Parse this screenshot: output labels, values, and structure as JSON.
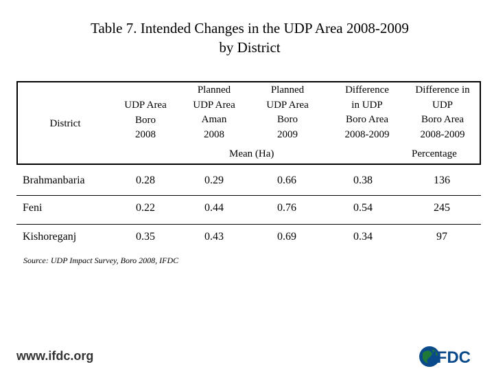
{
  "title": {
    "line1": "Table 7. Intended Changes  in the UDP Area 2008-2009",
    "line2": "by District"
  },
  "table": {
    "headers": {
      "district": "District",
      "col1": [
        "UDP Area",
        "Boro",
        "2008"
      ],
      "col2": [
        "Planned",
        "UDP Area",
        "Aman",
        "2008"
      ],
      "col3": [
        "Planned",
        "UDP Area",
        "Boro",
        "2009"
      ],
      "col4": [
        "Difference",
        "in UDP",
        "Boro Area",
        "2008-2009"
      ],
      "col5": [
        "Difference in",
        "UDP",
        "Boro Area",
        "2008-2009"
      ]
    },
    "unit_mean": "Mean (Ha)",
    "unit_percentage": "Percentage",
    "rows": [
      {
        "district": "Brahmanbaria",
        "values": [
          "0.28",
          "0.29",
          "0.66",
          "0.38",
          "136"
        ]
      },
      {
        "district": "Feni",
        "values": [
          "0.22",
          "0.44",
          "0.76",
          "0.54",
          "245"
        ]
      },
      {
        "district": "Kishoreganj",
        "values": [
          "0.35",
          "0.43",
          "0.69",
          "0.34",
          "97"
        ]
      }
    ]
  },
  "source": "Source:  UDP Impact Survey, Boro 2008, IFDC",
  "footer": {
    "url": "www.ifdc.org",
    "logo_text": "IFDC",
    "logo_color": "#0a4a8a",
    "logo_accent": "#1f7a3a"
  }
}
